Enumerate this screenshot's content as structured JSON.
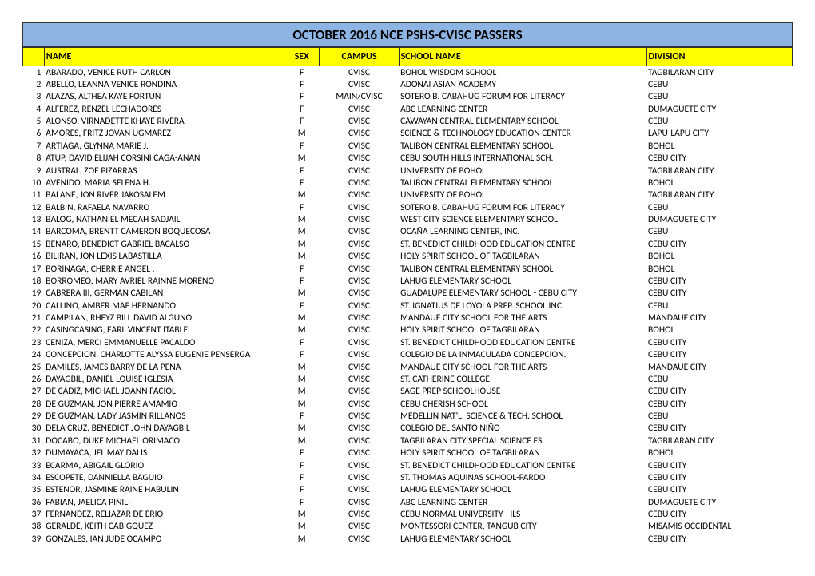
{
  "title": "OCTOBER 2016 NCE PSHS-CVISC PASSERS",
  "columns": {
    "num": "",
    "name": "NAME",
    "sex": "SEX",
    "campus": "CAMPUS",
    "school": "SCHOOL NAME",
    "division": "DIVISION"
  },
  "colors": {
    "title_bg": "#8eb4e3",
    "header_bg": "#ffff00",
    "border": "#333333",
    "text": "#000000",
    "page_bg": "#ffffff"
  },
  "rows": [
    {
      "n": 1,
      "name": "ABARADO, VENICE RUTH CARLON",
      "sex": "F",
      "campus": "CVISC",
      "school": "BOHOL WISDOM SCHOOL",
      "division": "TAGBILARAN CITY"
    },
    {
      "n": 2,
      "name": "ABELLO, LEANNA VENICE RONDINA",
      "sex": "F",
      "campus": "CVISC",
      "school": "ADONAI ASIAN ACADEMY",
      "division": "CEBU"
    },
    {
      "n": 3,
      "name": "ALAZAS, ALTHEA KAYE FORTUN",
      "sex": "F",
      "campus": "MAIN/CVISC",
      "school": "SOTERO B. CABAHUG FORUM FOR LITERACY",
      "division": "CEBU"
    },
    {
      "n": 4,
      "name": "ALFEREZ, RENZEL LECHADORES",
      "sex": "F",
      "campus": "CVISC",
      "school": "ABC LEARNING CENTER",
      "division": "DUMAGUETE CITY"
    },
    {
      "n": 5,
      "name": "ALONSO, VIRNADETTE KHAYE RIVERA",
      "sex": "F",
      "campus": "CVISC",
      "school": "CAWAYAN CENTRAL ELEMENTARY SCHOOL",
      "division": "CEBU"
    },
    {
      "n": 6,
      "name": "AMORES, FRITZ JOVAN UGMAREZ",
      "sex": "M",
      "campus": "CVISC",
      "school": "SCIENCE & TECHNOLOGY EDUCATION CENTER",
      "division": "LAPU-LAPU CITY"
    },
    {
      "n": 7,
      "name": "ARTIAGA, GLYNNA MARIE J.",
      "sex": "F",
      "campus": "CVISC",
      "school": "TALIBON CENTRAL ELEMENTARY SCHOOL",
      "division": "BOHOL"
    },
    {
      "n": 8,
      "name": "ATUP, DAVID ELIJAH CORSINI CAGA-ANAN",
      "sex": "M",
      "campus": "CVISC",
      "school": "CEBU SOUTH HILLS INTERNATIONAL SCH.",
      "division": "CEBU CITY"
    },
    {
      "n": 9,
      "name": "AUSTRAL, ZOE PIZARRAS",
      "sex": "F",
      "campus": "CVISC",
      "school": "UNIVERSITY OF BOHOL",
      "division": "TAGBILARAN CITY"
    },
    {
      "n": 10,
      "name": "AVENIDO, MARIA SELENA H.",
      "sex": "F",
      "campus": "CVISC",
      "school": "TALIBON CENTRAL ELEMENTARY SCHOOL",
      "division": "BOHOL"
    },
    {
      "n": 11,
      "name": "BALANE, JON RIVER JAKOSALEM",
      "sex": "M",
      "campus": "CVISC",
      "school": "UNIVERSITY OF BOHOL",
      "division": "TAGBILARAN CITY"
    },
    {
      "n": 12,
      "name": "BALBIN, RAFAELA NAVARRO",
      "sex": "F",
      "campus": "CVISC",
      "school": "SOTERO B. CABAHUG FORUM FOR LITERACY",
      "division": "CEBU"
    },
    {
      "n": 13,
      "name": "BALOG, NATHANIEL MECAH SADJAIL",
      "sex": "M",
      "campus": "CVISC",
      "school": "WEST CITY SCIENCE ELEMENTARY SCHOOL",
      "division": "DUMAGUETE CITY"
    },
    {
      "n": 14,
      "name": "BARCOMA, BRENTT CAMERON BOQUECOSA",
      "sex": "M",
      "campus": "CVISC",
      "school": "OCAÑA LEARNING CENTER, INC.",
      "division": "CEBU"
    },
    {
      "n": 15,
      "name": "BENARO, BENEDICT GABRIEL BACALSO",
      "sex": "M",
      "campus": "CVISC",
      "school": "ST. BENEDICT CHILDHOOD EDUCATION CENTRE",
      "division": "CEBU CITY"
    },
    {
      "n": 16,
      "name": "BILIRAN, JON LEXIS LABASTILLA",
      "sex": "M",
      "campus": "CVISC",
      "school": "HOLY SPIRIT SCHOOL OF TAGBILARAN",
      "division": "BOHOL"
    },
    {
      "n": 17,
      "name": "BORINAGA, CHERRIE ANGEL .",
      "sex": "F",
      "campus": "CVISC",
      "school": "TALIBON CENTRAL ELEMENTARY SCHOOL",
      "division": "BOHOL"
    },
    {
      "n": 18,
      "name": "BORROMEO, MARY AVRIEL RAINNE MORENO",
      "sex": "F",
      "campus": "CVISC",
      "school": "LAHUG ELEMENTARY SCHOOL",
      "division": "CEBU CITY"
    },
    {
      "n": 19,
      "name": "CABRERA III, GERMAN CABILAN",
      "sex": "M",
      "campus": "CVISC",
      "school": "GUADALUPE ELEMENTARY SCHOOL - CEBU CITY",
      "division": "CEBU CITY"
    },
    {
      "n": 20,
      "name": "CALLINO, AMBER MAE HERNANDO",
      "sex": "F",
      "campus": "CVISC",
      "school": "ST. IGNATIUS DE LOYOLA PREP. SCHOOL INC.",
      "division": "CEBU"
    },
    {
      "n": 21,
      "name": "CAMPILAN, RHEYZ BILL DAVID ALGUNO",
      "sex": "M",
      "campus": "CVISC",
      "school": "MANDAUE CITY SCHOOL FOR THE ARTS",
      "division": "MANDAUE CITY"
    },
    {
      "n": 22,
      "name": "CASINGCASING, EARL VINCENT ITABLE",
      "sex": "M",
      "campus": "CVISC",
      "school": "HOLY SPIRIT SCHOOL OF TAGBILARAN",
      "division": "BOHOL"
    },
    {
      "n": 23,
      "name": "CENIZA, MERCI EMMANUELLE PACALDO",
      "sex": "F",
      "campus": "CVISC",
      "school": "ST. BENEDICT CHILDHOOD EDUCATION CENTRE",
      "division": "CEBU CITY"
    },
    {
      "n": 24,
      "name": "CONCEPCION, CHARLOTTE ALYSSA EUGENIE PENSERGA",
      "sex": "F",
      "campus": "CVISC",
      "school": "COLEGIO DE LA INMACULADA CONCEPCION.",
      "division": "CEBU CITY"
    },
    {
      "n": 25,
      "name": "DAMILES, JAMES BARRY DE LA PEÑA",
      "sex": "M",
      "campus": "CVISC",
      "school": "MANDAUE CITY SCHOOL FOR THE ARTS",
      "division": "MANDAUE CITY"
    },
    {
      "n": 26,
      "name": "DAYAGBIL, DANIEL LOUISE IGLESIA",
      "sex": "M",
      "campus": "CVISC",
      "school": "ST. CATHERINE COLLEGE",
      "division": "CEBU"
    },
    {
      "n": 27,
      "name": "DE CADIZ, MICHAEL JOANN FACIOL",
      "sex": "M",
      "campus": "CVISC",
      "school": "SAGE PREP SCHOOLHOUSE",
      "division": "CEBU CITY"
    },
    {
      "n": 28,
      "name": "DE GUZMAN, JON PIERRE AMAMIO",
      "sex": "M",
      "campus": "CVISC",
      "school": "CEBU CHERISH SCHOOL",
      "division": "CEBU CITY"
    },
    {
      "n": 29,
      "name": "DE GUZMAN, LADY JASMIN RILLANOS",
      "sex": "F",
      "campus": "CVISC",
      "school": "MEDELLIN NAT'L. SCIENCE & TECH. SCHOOL",
      "division": "CEBU"
    },
    {
      "n": 30,
      "name": "DELA CRUZ, BENEDICT JOHN DAYAGBIL",
      "sex": "M",
      "campus": "CVISC",
      "school": "COLEGIO DEL SANTO NIÑO",
      "division": "CEBU CITY"
    },
    {
      "n": 31,
      "name": "DOCABO, DUKE MICHAEL ORIMACO",
      "sex": "M",
      "campus": "CVISC",
      "school": "TAGBILARAN CITY SPECIAL SCIENCE ES",
      "division": "TAGBILARAN CITY"
    },
    {
      "n": 32,
      "name": "DUMAYACA, JEL MAY DALIS",
      "sex": "F",
      "campus": "CVISC",
      "school": "HOLY SPIRIT SCHOOL OF TAGBILARAN",
      "division": "BOHOL"
    },
    {
      "n": 33,
      "name": "ECARMA, ABIGAIL GLORIO",
      "sex": "F",
      "campus": "CVISC",
      "school": "ST. BENEDICT CHILDHOOD EDUCATION CENTRE",
      "division": "CEBU CITY"
    },
    {
      "n": 34,
      "name": "ESCOPETE, DANNIELLA BAGUIO",
      "sex": "F",
      "campus": "CVISC",
      "school": "ST. THOMAS AQUINAS SCHOOL-PARDO",
      "division": "CEBU CITY"
    },
    {
      "n": 35,
      "name": "ESTENOR, JASMINE RAINE HABULIN",
      "sex": "F",
      "campus": "CVISC",
      "school": "LAHUG ELEMENTARY SCHOOL",
      "division": "CEBU CITY"
    },
    {
      "n": 36,
      "name": "FABIAN, JAELICA PINILI",
      "sex": "F",
      "campus": "CVISC",
      "school": "ABC LEARNING CENTER",
      "division": "DUMAGUETE CITY"
    },
    {
      "n": 37,
      "name": "FERNANDEZ, RELIAZAR DE ERIO",
      "sex": "M",
      "campus": "CVISC",
      "school": "CEBU NORMAL UNIVERSITY - ILS",
      "division": "CEBU CITY"
    },
    {
      "n": 38,
      "name": "GERALDE, KEITH CABIGQUEZ",
      "sex": "M",
      "campus": "CVISC",
      "school": "MONTESSORI CENTER, TANGUB CITY",
      "division": "MISAMIS OCCIDENTAL"
    },
    {
      "n": 39,
      "name": "GONZALES, IAN JUDE OCAMPO",
      "sex": "M",
      "campus": "CVISC",
      "school": "LAHUG ELEMENTARY SCHOOL",
      "division": "CEBU CITY"
    }
  ]
}
